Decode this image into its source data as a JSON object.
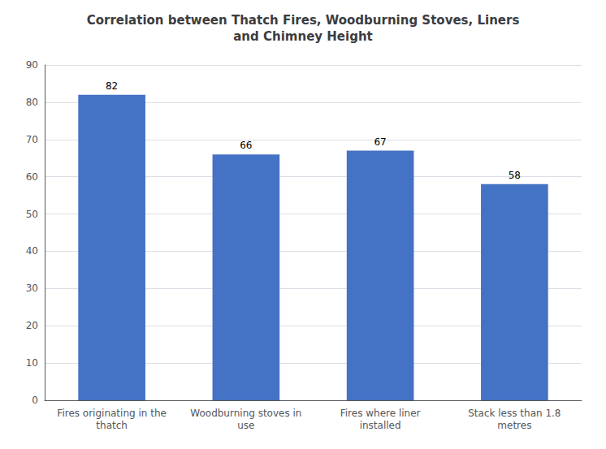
{
  "chart_data": {
    "type": "bar",
    "title": "Correlation between Thatch Fires, Woodburning Stoves, Liners\nand Chimney Height",
    "categories": [
      "Fires originating in the\nthatch",
      "Woodburning stoves in\nuse",
      "Fires where liner\ninstalled",
      "Stack less than 1.8\nmetres"
    ],
    "values": [
      82,
      66,
      67,
      58
    ],
    "color": "#4472C4",
    "ylim": [
      0,
      90
    ],
    "yticks": [
      0,
      10,
      20,
      30,
      40,
      50,
      60,
      70,
      80,
      90
    ],
    "grid": true,
    "data_labels": true
  }
}
